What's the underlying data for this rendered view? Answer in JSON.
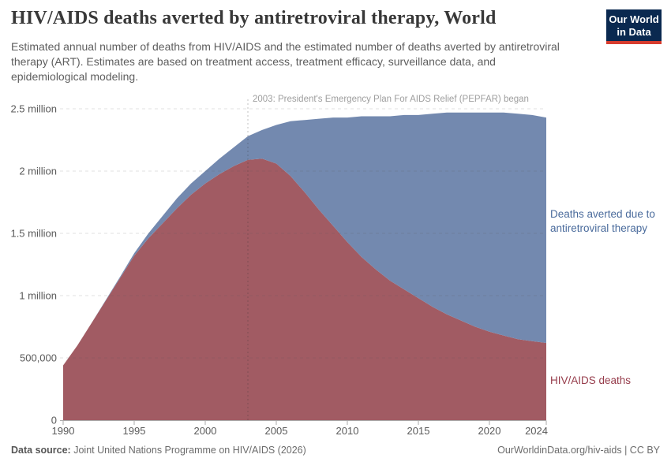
{
  "header": {
    "title": "HIV/AIDS deaths averted by antiretroviral therapy, World",
    "subtitle": "Estimated annual number of deaths from HIV/AIDS and the estimated number of deaths averted by antiretroviral therapy (ART). Estimates are based on treatment access, treatment efficacy, surveillance data, and epidemiological modeling.",
    "logo": {
      "line1": "Our World",
      "line2": "in Data",
      "bg_color": "#0a2950",
      "stripe_color": "#d73c2e"
    }
  },
  "annotation": {
    "year": 2003,
    "text": "2003: President's Emergency Plan For AIDS Relief (PEPFAR) began"
  },
  "footer": {
    "source_label": "Data source:",
    "source_text": "Joint United Nations Programme on HIV/AIDS (2026)",
    "credit": "OurWorldinData.org/hiv-aids | CC BY"
  },
  "chart_data": {
    "type": "area",
    "stacked": true,
    "title": "HIV/AIDS deaths averted by antiretroviral therapy, World",
    "xlabel": "",
    "ylabel": "",
    "grid": "horizontal-dashed",
    "legend_position": "right-edge-labels",
    "xlim": [
      1990,
      2024
    ],
    "ylim": [
      0,
      2500000
    ],
    "x_ticks": [
      1990,
      1995,
      2000,
      2005,
      2010,
      2015,
      2020,
      2024
    ],
    "y_ticks": [
      {
        "value": 0,
        "label": "0"
      },
      {
        "value": 500000,
        "label": "500,000"
      },
      {
        "value": 1000000,
        "label": "1 million"
      },
      {
        "value": 1500000,
        "label": "1.5 million"
      },
      {
        "value": 2000000,
        "label": "2 million"
      },
      {
        "value": 2500000,
        "label": "2.5 million"
      }
    ],
    "x": [
      1990,
      1991,
      1992,
      1993,
      1994,
      1995,
      1996,
      1997,
      1998,
      1999,
      2000,
      2001,
      2002,
      2003,
      2004,
      2005,
      2006,
      2007,
      2008,
      2009,
      2010,
      2011,
      2012,
      2013,
      2014,
      2015,
      2016,
      2017,
      2018,
      2019,
      2020,
      2021,
      2022,
      2023,
      2024
    ],
    "series": [
      {
        "name": "HIV/AIDS deaths",
        "label": "HIV/AIDS deaths",
        "color": "#a15b63",
        "label_color": "#963c4b",
        "values": [
          440000,
          600000,
          780000,
          960000,
          1140000,
          1320000,
          1460000,
          1580000,
          1700000,
          1810000,
          1900000,
          1975000,
          2040000,
          2090000,
          2100000,
          2060000,
          1960000,
          1830000,
          1690000,
          1560000,
          1430000,
          1310000,
          1210000,
          1120000,
          1050000,
          980000,
          910000,
          850000,
          800000,
          750000,
          710000,
          680000,
          650000,
          635000,
          620000
        ]
      },
      {
        "name": "Deaths averted due to antiretroviral therapy",
        "label": "Deaths averted due to antiretroviral therapy",
        "color": "#7389af",
        "label_color": "#4a6b9c",
        "values": [
          0,
          0,
          0,
          5000,
          10000,
          20000,
          40000,
          60000,
          80000,
          90000,
          100000,
          125000,
          150000,
          190000,
          230000,
          310000,
          440000,
          580000,
          730000,
          870000,
          1000000,
          1130000,
          1230000,
          1320000,
          1400000,
          1470000,
          1550000,
          1620000,
          1670000,
          1720000,
          1760000,
          1790000,
          1810000,
          1815000,
          1810000
        ]
      }
    ]
  }
}
